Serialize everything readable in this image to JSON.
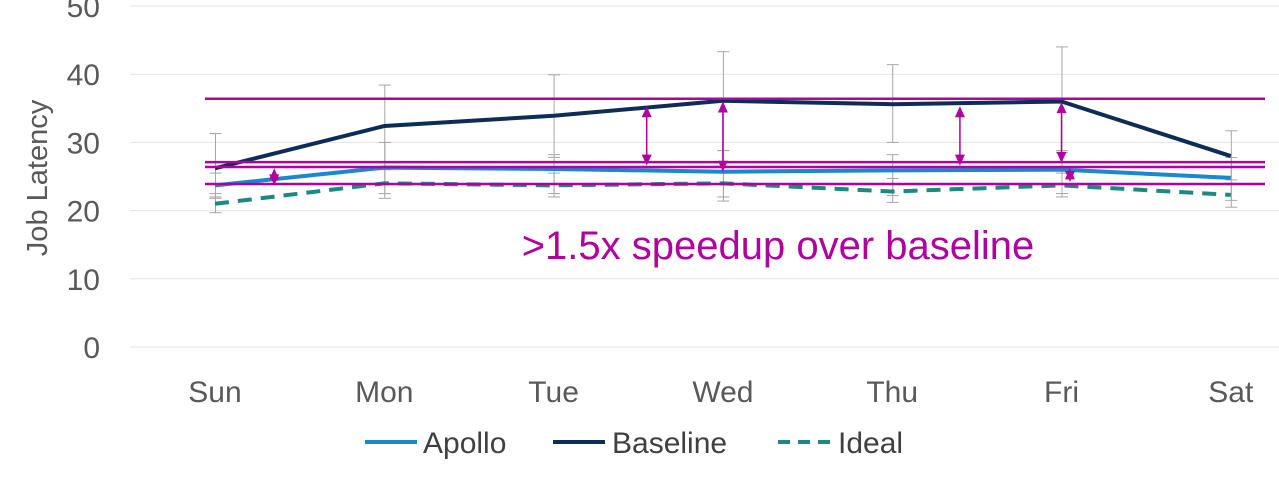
{
  "chart_data": {
    "type": "line",
    "categories": [
      "Sun",
      "Mon",
      "Tue",
      "Wed",
      "Thu",
      "Fri",
      "Sat"
    ],
    "ylabel": "Job Latency",
    "xlabel": "",
    "ylim": [
      0,
      50
    ],
    "yticks": [
      0,
      10,
      20,
      30,
      40,
      50
    ],
    "grid": true,
    "legend_position": "bottom",
    "series": [
      {
        "name": "Apollo",
        "color": "#1a87cf",
        "dash": "solid",
        "values": [
          23.7,
          26.3,
          26.1,
          25.7,
          25.9,
          26.0,
          24.8
        ],
        "err_low": [
          21.8,
          22.5,
          22.5,
          22.0,
          22.2,
          22.5,
          21.5
        ],
        "err_high": [
          25.5,
          30.0,
          28.2,
          28.8,
          28.2,
          28.8,
          27.8
        ]
      },
      {
        "name": "Baseline",
        "color": "#0d2d57",
        "dash": "solid",
        "values": [
          26.2,
          32.4,
          33.9,
          36.1,
          35.6,
          36.0,
          28.0
        ],
        "err_low": [
          22.0,
          26.3,
          27.8,
          28.8,
          30.0,
          28.5,
          24.5
        ],
        "err_high": [
          31.3,
          38.4,
          39.9,
          43.3,
          41.4,
          44.0,
          31.7
        ]
      },
      {
        "name": "Ideal",
        "color": "#1a8a80",
        "dash": "dashed",
        "values": [
          21.0,
          24.0,
          23.7,
          24.0,
          22.8,
          23.7,
          22.3
        ],
        "err_low": [
          19.7,
          21.8,
          22.0,
          21.4,
          21.2,
          22.0,
          20.5
        ],
        "err_high": [
          22.5,
          26.0,
          25.5,
          26.5,
          24.7,
          25.5,
          24.0
        ]
      }
    ],
    "annotations": {
      "text": ">1.5x speedup over baseline",
      "color": "#b0009e",
      "reference_lines": [
        36.4,
        27.1,
        26.4,
        23.9
      ],
      "arrows": [
        {
          "x": 0.35,
          "y1": 23.7,
          "y2": 26.2
        },
        {
          "x": 2.55,
          "y1": 26.6,
          "y2": 35.3
        },
        {
          "x": 3.0,
          "y1": 25.7,
          "y2": 36.0
        },
        {
          "x": 4.4,
          "y1": 26.6,
          "y2": 35.3
        },
        {
          "x": 5.0,
          "y1": 27.0,
          "y2": 35.9
        },
        {
          "x": 5.05,
          "y1": 24.2,
          "y2": 26.2
        }
      ]
    }
  }
}
